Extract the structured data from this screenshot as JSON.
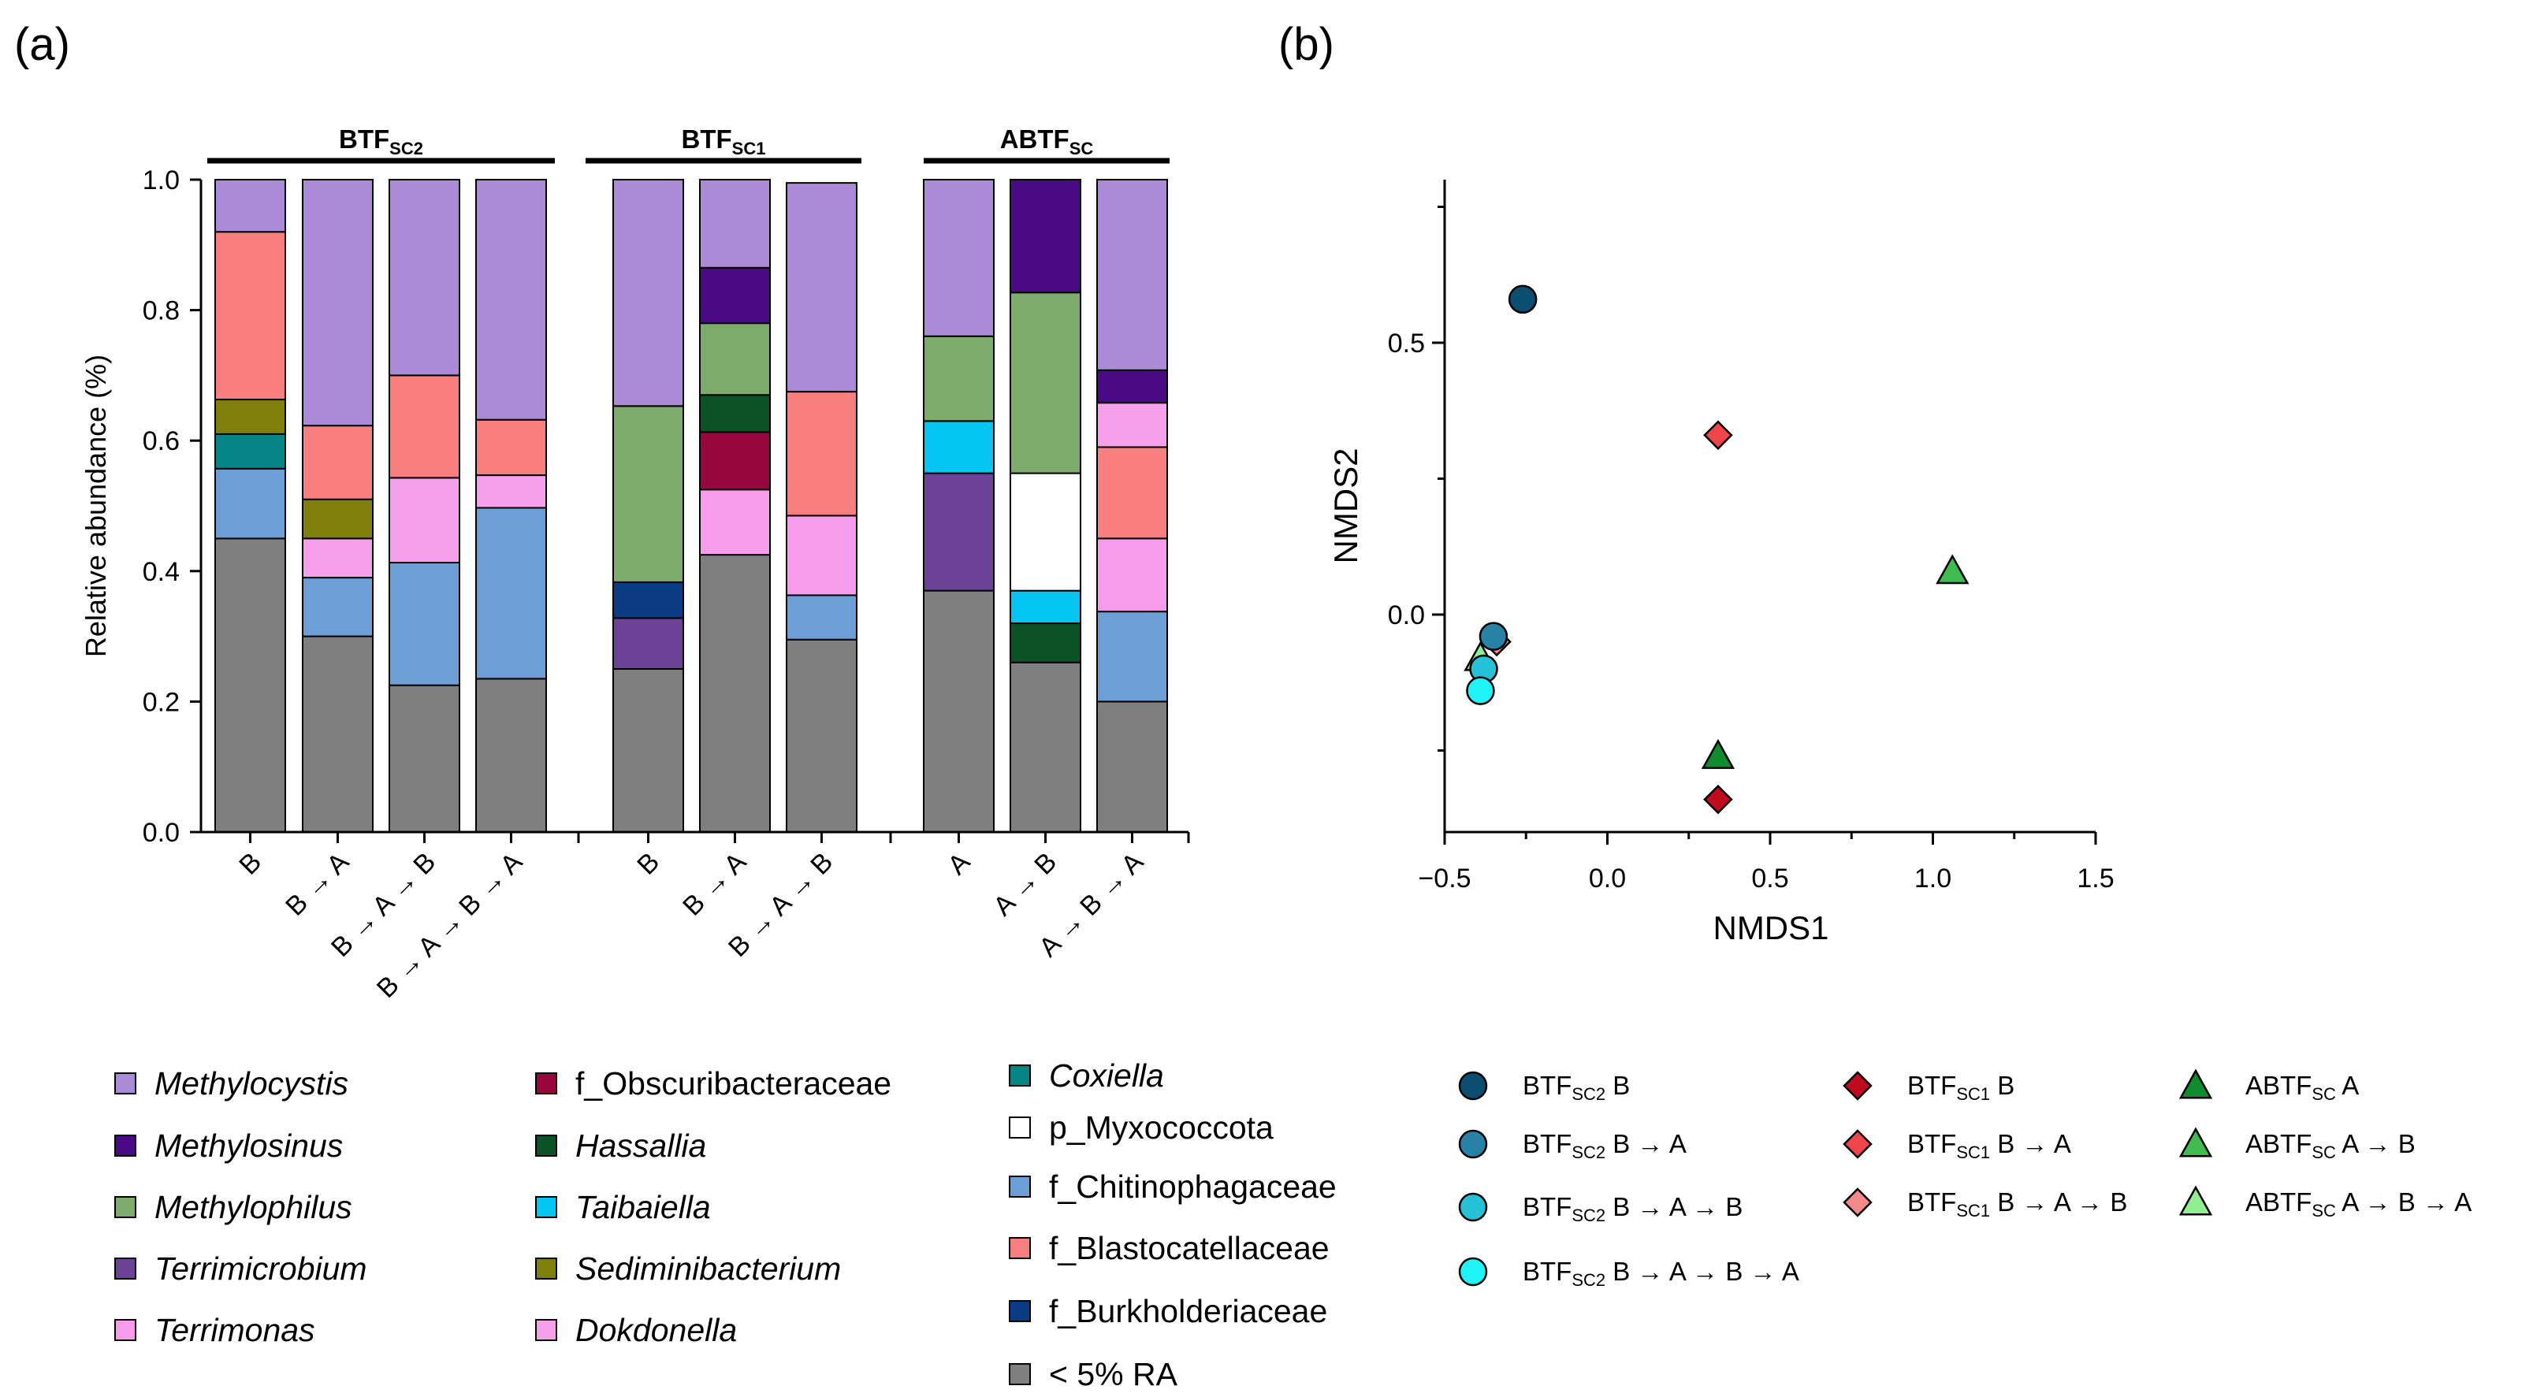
{
  "panel_a_label": "(a)",
  "panel_b_label": "(b)",
  "colors": {
    "Methylocystis": "#ab8bd8",
    "Methylosinus": "#4a0a85",
    "Methylophilus": "#7dab6c",
    "Terrimicrobium": "#6b4295",
    "Terrimonas": "#f79cec",
    "f_Obscuribacteraceae": "#98063e",
    "Hassallia": "#0b5326",
    "Taibaiella": "#05c5f3",
    "Sediminibacterium": "#7f7f0b",
    "Dokdonella": "#f6a0ec",
    "Coxiella": "#068586",
    "p_Myxococcota": "#ffffff",
    "f_Chitinophagaceae": "#6d9fd7",
    "f_Blastocatellaceae": "#f87f7e",
    "f_Burkholderiaceae": "#0b3b83",
    "lt5": "#7f7f7f"
  },
  "chart_data": [
    {
      "type": "stacked-bar",
      "ylabel": "Relative abundance (%)",
      "ylim": [
        0,
        1.0
      ],
      "yticks": [
        "0.0",
        "0.2",
        "0.4",
        "0.6",
        "0.8",
        "1.0"
      ],
      "groups": [
        {
          "name": "BTF",
          "sub": "SC2",
          "bars": [
            0,
            1,
            2,
            3
          ]
        },
        {
          "name": "BTF",
          "sub": "SC1",
          "bars": [
            4,
            5,
            6
          ]
        },
        {
          "name": "ABTF",
          "sub": "SC",
          "bars": [
            7,
            8,
            9
          ]
        }
      ],
      "categories": [
        "B",
        "B → A",
        "B → A → B",
        "B → A → B → A",
        "B",
        "B → A",
        "B → A → B",
        "A",
        "A → B",
        "A → B → A"
      ],
      "bars": [
        {
          "label": "B",
          "segments": [
            [
              "lt5",
              0.45
            ],
            [
              "f_Chitinophagaceae",
              0.107
            ],
            [
              "Coxiella",
              0.053
            ],
            [
              "Sediminibacterium",
              0.053
            ],
            [
              "f_Blastocatellaceae",
              0.257
            ],
            [
              "Methylocystis",
              0.08
            ]
          ]
        },
        {
          "label": "B → A",
          "segments": [
            [
              "lt5",
              0.3
            ],
            [
              "f_Chitinophagaceae",
              0.09
            ],
            [
              "Dokdonella",
              0.06
            ],
            [
              "Sediminibacterium",
              0.06
            ],
            [
              "f_Blastocatellaceae",
              0.113
            ],
            [
              "Methylocystis",
              0.377
            ]
          ]
        },
        {
          "label": "B → A → B",
          "segments": [
            [
              "lt5",
              0.225
            ],
            [
              "f_Chitinophagaceae",
              0.188
            ],
            [
              "Dokdonella",
              0.13
            ],
            [
              "f_Blastocatellaceae",
              0.157
            ],
            [
              "Methylocystis",
              0.3
            ]
          ]
        },
        {
          "label": "B → A → B → A",
          "segments": [
            [
              "lt5",
              0.235
            ],
            [
              "f_Chitinophagaceae",
              0.262
            ],
            [
              "Dokdonella",
              0.05
            ],
            [
              "f_Blastocatellaceae",
              0.085
            ],
            [
              "Methylocystis",
              0.368
            ]
          ]
        },
        {
          "label": "B",
          "segments": [
            [
              "lt5",
              0.25
            ],
            [
              "Terrimicrobium",
              0.078
            ],
            [
              "f_Burkholderiaceae",
              0.055
            ],
            [
              "Methylophilus",
              0.27
            ],
            [
              "Methylocystis",
              0.347
            ]
          ]
        },
        {
          "label": "B → A",
          "segments": [
            [
              "lt5",
              0.425
            ],
            [
              "Terrimonas",
              0.1
            ],
            [
              "f_Obscuribacteraceae",
              0.088
            ],
            [
              "Hassallia",
              0.057
            ],
            [
              "Methylophilus",
              0.11
            ],
            [
              "Methylosinus",
              0.085
            ],
            [
              "Methylocystis",
              0.135
            ]
          ]
        },
        {
          "label": "B → A → B",
          "segments": [
            [
              "lt5",
              0.295
            ],
            [
              "f_Chitinophagaceae",
              0.068
            ],
            [
              "Terrimonas",
              0.122
            ],
            [
              "f_Blastocatellaceae",
              0.19
            ],
            [
              "Methylocystis",
              0.32
            ]
          ]
        },
        {
          "label": "A",
          "segments": [
            [
              "lt5",
              0.37
            ],
            [
              "Terrimicrobium",
              0.18
            ],
            [
              "Taibaiella",
              0.08
            ],
            [
              "Methylophilus",
              0.13
            ],
            [
              "Methylocystis",
              0.24
            ]
          ]
        },
        {
          "label": "A → B",
          "segments": [
            [
              "lt5",
              0.26
            ],
            [
              "Hassallia",
              0.06
            ],
            [
              "Taibaiella",
              0.05
            ],
            [
              "p_Myxococcota",
              0.18
            ],
            [
              "Methylophilus",
              0.277
            ],
            [
              "Methylosinus",
              0.173
            ]
          ]
        },
        {
          "label": "A → B → A",
          "segments": [
            [
              "lt5",
              0.2
            ],
            [
              "f_Chitinophagaceae",
              0.138
            ],
            [
              "Terrimonas",
              0.112
            ],
            [
              "f_Blastocatellaceae",
              0.14
            ],
            [
              "Dokdonella",
              0.068
            ],
            [
              "Methylosinus",
              0.05
            ],
            [
              "Methylocystis",
              0.292
            ]
          ]
        }
      ],
      "legend": [
        [
          {
            "key": "Methylocystis",
            "text": "Methylocystis",
            "italic": true
          },
          {
            "key": "Methylosinus",
            "text": "Methylosinus",
            "italic": true
          },
          {
            "key": "Methylophilus",
            "text": "Methylophilus",
            "italic": true
          },
          {
            "key": "Terrimicrobium",
            "text": "Terrimicrobium",
            "italic": true
          },
          {
            "key": "Terrimonas",
            "text": "Terrimonas",
            "italic": true
          }
        ],
        [
          {
            "key": "f_Obscuribacteraceae",
            "text": "f_Obscuribacteraceae",
            "italic": false
          },
          {
            "key": "Hassallia",
            "text": "Hassallia",
            "italic": true
          },
          {
            "key": "Taibaiella",
            "text": "Taibaiella",
            "italic": true
          },
          {
            "key": "Sediminibacterium",
            "text": "Sediminibacterium",
            "italic": true
          },
          {
            "key": "Dokdonella",
            "text": "Dokdonella",
            "italic": true
          }
        ],
        [
          {
            "key": "Coxiella",
            "text": "Coxiella",
            "italic": true
          },
          {
            "key": "p_Myxococcota",
            "text": "p_Myxococcota",
            "italic": false
          },
          {
            "key": "f_Chitinophagaceae",
            "text": "f_Chitinophagaceae",
            "italic": false
          },
          {
            "key": "f_Blastocatellaceae",
            "text": "f_Blastocatellaceae",
            "italic": false
          },
          {
            "key": "f_Burkholderiaceae",
            "text": "f_Burkholderiaceae",
            "italic": false
          },
          {
            "key": "lt5",
            "text": "< 5% RA",
            "italic": false
          }
        ]
      ]
    },
    {
      "type": "scatter",
      "xlabel": "NMDS1",
      "ylabel": "NMDS2",
      "xlim": [
        -0.5,
        1.5
      ],
      "ylim": [
        -0.4,
        0.8
      ],
      "xticks": [
        [
          "-0.5",
          "−0.5"
        ],
        [
          "0",
          "0.0"
        ],
        [
          "0.5",
          "0.5"
        ],
        [
          "1",
          "1.0"
        ],
        [
          "1.5",
          "1.5"
        ]
      ],
      "yticks": [
        [
          "0",
          "0.0"
        ],
        [
          "0.5",
          "0.5"
        ]
      ],
      "points": [
        {
          "name": "BTF",
          "sub": "SC2",
          "suffix": " B",
          "shape": "circle",
          "color": "#0c4d72",
          "x": -0.26,
          "y": 0.58
        },
        {
          "name": "BTF",
          "sub": "SC2",
          "suffix": " B → A",
          "shape": "circle",
          "color": "#2882a6",
          "x": -0.35,
          "y": -0.04
        },
        {
          "name": "BTF",
          "sub": "SC2",
          "suffix": " B → A → B",
          "shape": "circle",
          "color": "#26c1d6",
          "x": -0.38,
          "y": -0.1
        },
        {
          "name": "BTF",
          "sub": "SC2",
          "suffix": " B → A → B → A",
          "shape": "circle",
          "color": "#20f3f8",
          "x": -0.39,
          "y": -0.14
        },
        {
          "name": "BTF",
          "sub": "SC1",
          "suffix": " B",
          "shape": "diamond",
          "color": "#c00b1f",
          "x": 0.34,
          "y": -0.34
        },
        {
          "name": "BTF",
          "sub": "SC1",
          "suffix": " B → A",
          "shape": "diamond",
          "color": "#f0454b",
          "x": 0.34,
          "y": 0.33
        },
        {
          "name": "BTF",
          "sub": "SC1",
          "suffix": " B → A → B",
          "shape": "diamond",
          "color": "#f48989",
          "x": -0.34,
          "y": -0.05
        },
        {
          "name": "ABTF",
          "sub": "SC",
          "suffix": " A",
          "shape": "triangle",
          "color": "#0f8c2e",
          "x": 0.34,
          "y": -0.26
        },
        {
          "name": "ABTF",
          "sub": "SC",
          "suffix": " A → B",
          "shape": "triangle",
          "color": "#3fbb4f",
          "x": 1.06,
          "y": 0.08
        },
        {
          "name": "ABTF",
          "sub": "SC",
          "suffix": " A → B → A",
          "shape": "triangle",
          "color": "#90f08f",
          "x": -0.39,
          "y": -0.08
        }
      ],
      "legend_columns": [
        [
          0,
          1,
          2,
          3
        ],
        [
          4,
          5,
          6
        ],
        [
          7,
          8,
          9
        ]
      ]
    }
  ]
}
